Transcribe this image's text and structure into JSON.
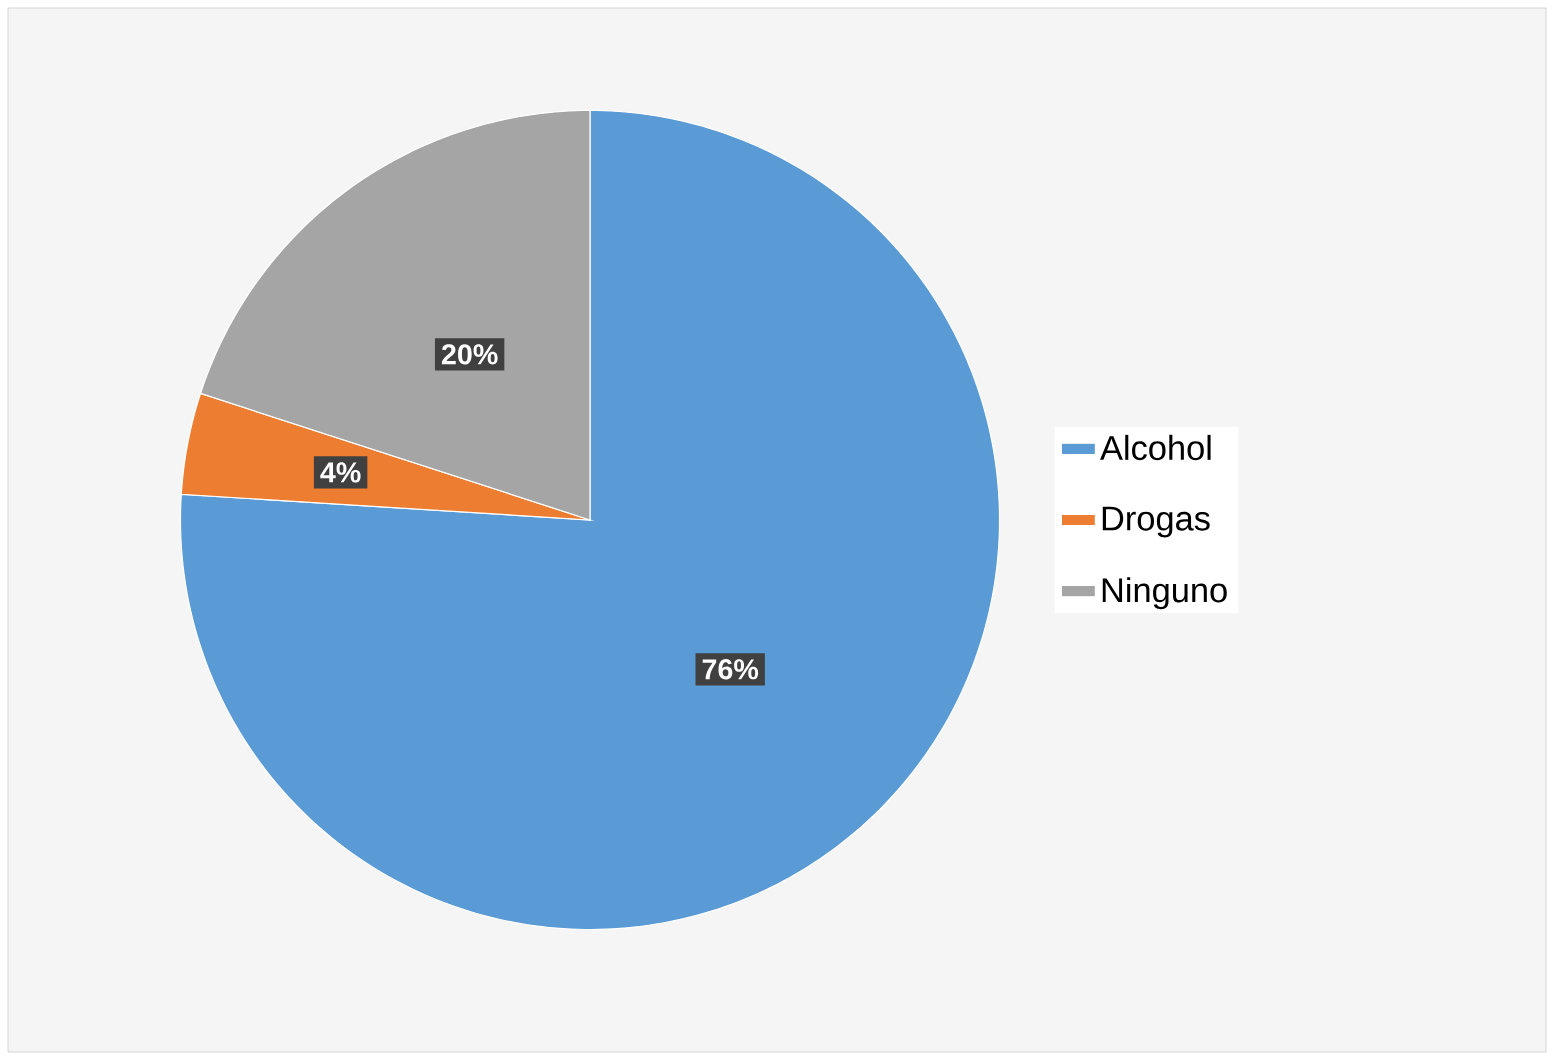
{
  "chart_data": {
    "type": "pie",
    "categories": [
      "Alcohol",
      "Drogas",
      "Ninguno"
    ],
    "values": [
      76,
      4,
      20
    ],
    "colors": [
      "#5b9bd5",
      "#ed7d31",
      "#a5a5a5"
    ],
    "value_labels": [
      "76%",
      "4%",
      "20%"
    ],
    "legend": "right"
  }
}
